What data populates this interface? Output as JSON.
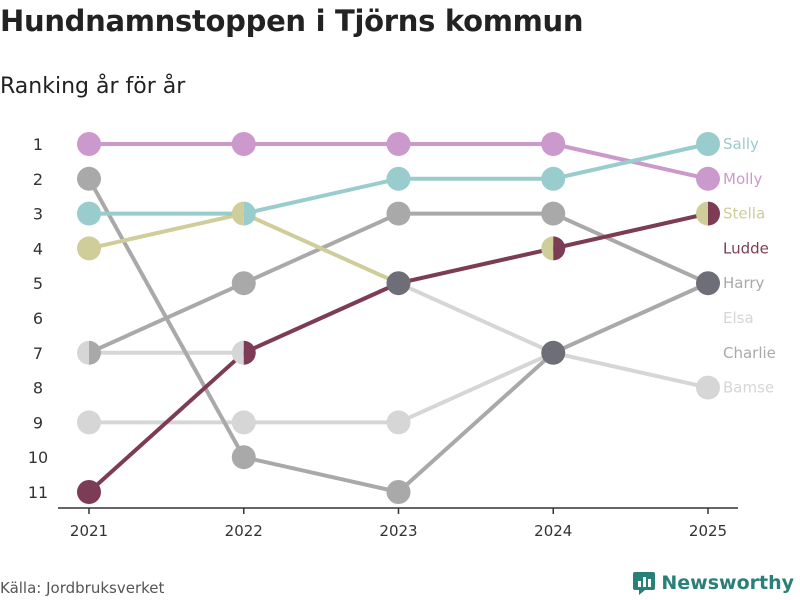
{
  "title": "Hundnamnstoppen i Tjörns kommun",
  "subtitle": "Ranking år för år",
  "source": "Källa: Jordbruksverket",
  "brand": "Newsworthy",
  "chart_data": {
    "type": "line",
    "title": "Hundnamnstoppen i Tjörns kommun",
    "subtitle": "Ranking år för år",
    "x": [
      "2021",
      "2022",
      "2023",
      "2024",
      "2025"
    ],
    "yticks": [
      "1",
      "2",
      "3",
      "4",
      "5",
      "6",
      "7",
      "8",
      "9",
      "10",
      "11"
    ],
    "ylim": [
      1,
      11
    ],
    "y_reversed": true,
    "series": [
      {
        "name": "Bamse",
        "color": "#d6d6d6",
        "values": [
          9,
          9,
          9,
          7,
          8
        ]
      },
      {
        "name": "Elsa",
        "color": "#d6d6d6",
        "values": [
          7,
          7,
          5,
          7,
          5
        ]
      },
      {
        "name": "Charlie",
        "color": "#a9a9a9",
        "values": [
          2,
          10,
          11,
          7,
          5
        ]
      },
      {
        "name": "Harry",
        "color": "#a9a9a9",
        "values": [
          7,
          5,
          3,
          3,
          5
        ]
      },
      {
        "name": "Stella",
        "color": "#cfcd99",
        "values": [
          4,
          3,
          5,
          4,
          3
        ]
      },
      {
        "name": "Ludde",
        "color": "#7d3c55",
        "values": [
          11,
          7,
          5,
          4,
          3
        ]
      },
      {
        "name": "Molly",
        "color": "#cc99cc",
        "values": [
          1,
          1,
          1,
          1,
          2
        ]
      },
      {
        "name": "Sally",
        "color": "#99cccc",
        "values": [
          3,
          3,
          2,
          2,
          1
        ]
      }
    ],
    "end_labels": [
      {
        "name": "Sally",
        "color": "#99cccc",
        "rank": 1
      },
      {
        "name": "Molly",
        "color": "#cc99cc",
        "rank": 2
      },
      {
        "name": "Stella",
        "color": "#cfcd99",
        "rank": 3
      },
      {
        "name": "Ludde",
        "color": "#7d3c55",
        "rank": 4
      },
      {
        "name": "Harry",
        "color": "#a9a9a9",
        "rank": 5
      },
      {
        "name": "Elsa",
        "color": "#d6d6d6",
        "rank": 6
      },
      {
        "name": "Charlie",
        "color": "#a9a9a9",
        "rank": 7
      },
      {
        "name": "Bamse",
        "color": "#d6d6d6",
        "rank": 8
      }
    ],
    "tie_color": "#6e6e78"
  }
}
